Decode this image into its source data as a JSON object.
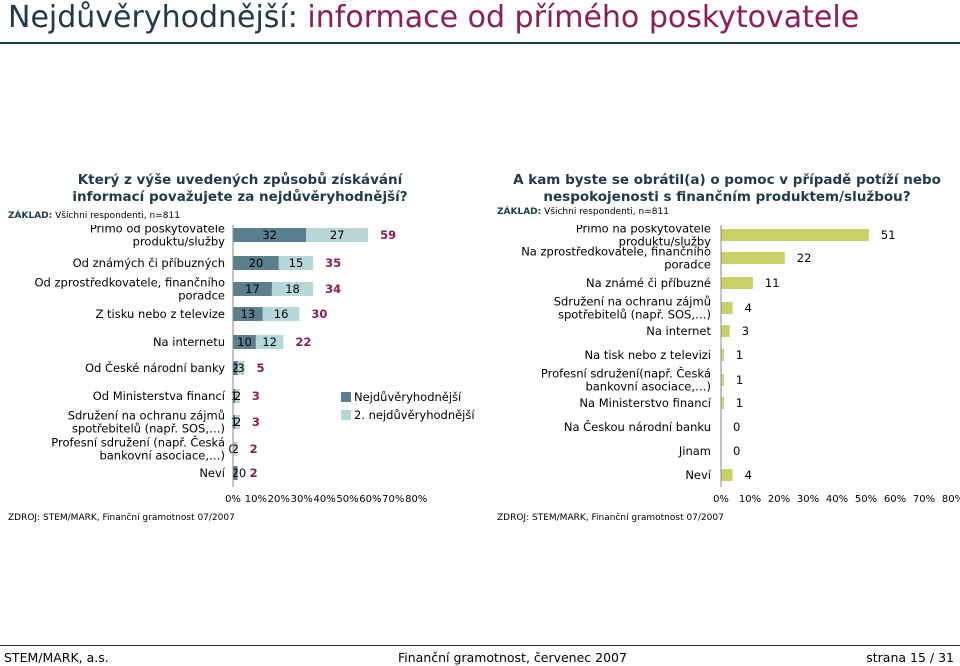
{
  "page": {
    "title_part1": "Nejdůvěryhodnější:",
    "title_part2": " informace od přímého poskytovatele",
    "footer_left": "STEM/MARK, a.s.",
    "footer_center": "Finanční gramotnost, červenec 2007",
    "footer_right": "strana 15 / 31"
  },
  "left": {
    "question": "Který z výše uvedených způsobů získávání informací považujete za nejdůvěryhodnější?",
    "base_label": "ZÁKLAD:",
    "base_text": " Všichni respondenti, n=811",
    "source": "ZDROJ: STEM/MARK, Finanční gramotnost 07/2007"
  },
  "right": {
    "question": "A kam byste se obrátil(a) o pomoc v případě potíží nebo nespokojenosti s finančním produktem/službou?",
    "base_label": "ZÁKLAD:",
    "base_text": " Všichni respondenti, n=811",
    "source": "ZDROJ: STEM/MARK, Finanční gramotnost 07/2007"
  },
  "colors": {
    "series1": "#5b7f8f",
    "series2": "#b6d6d8",
    "total_text": "#8b1e5a",
    "right_bar": "#c8d06a",
    "title_dark": "#1f3a4a",
    "title_accent": "#8b1e5a"
  },
  "chart_data": [
    {
      "type": "bar",
      "orientation": "horizontal",
      "stacked": true,
      "categories": [
        "Přímo od poskytovatele produktu/služby",
        "Od známých či příbuzných",
        "Od zprostředkovatele, finančního poradce",
        "Z tisku nebo z televize",
        "Na internetu",
        "Od České národní banky",
        "Od Ministerstva financí",
        "Sdružení na ochranu zájmů spotřebitelů (např. SOS,…)",
        "Profesní sdružení (např. Česká bankovní asociace,…)",
        "Neví"
      ],
      "series": [
        {
          "name": "Nejdůvěryhodnější",
          "values": [
            32,
            20,
            17,
            13,
            10,
            2,
            1,
            1,
            0,
            2
          ]
        },
        {
          "name": "2. nejdůvěryhodnější",
          "values": [
            27,
            15,
            18,
            16,
            12,
            3,
            2,
            2,
            2,
            0
          ]
        }
      ],
      "totals": [
        59,
        35,
        34,
        30,
        22,
        5,
        3,
        3,
        2,
        2
      ],
      "xlim": [
        0,
        80
      ],
      "xticks": [
        "0%",
        "10%",
        "20%",
        "30%",
        "40%",
        "50%",
        "60%",
        "70%",
        "80%"
      ],
      "legend": "right"
    },
    {
      "type": "bar",
      "orientation": "horizontal",
      "categories": [
        "Přímo na poskytovatele produktu/služby",
        "Na zprostředkovatele, finančního poradce",
        "Na známé či příbuzné",
        "Sdružení na ochranu zájmů spotřebitelů (např. SOS,…)",
        "Na internet",
        "Na tisk nebo z televizi",
        "Profesní sdružení(např. Česká bankovní asociace,…)",
        "Na Ministerstvo financí",
        "Na Českou národní banku",
        "Jinam",
        "Neví"
      ],
      "values": [
        51,
        22,
        11,
        4,
        3,
        1,
        1,
        1,
        0,
        0,
        4
      ],
      "xlim": [
        0,
        80
      ],
      "xticks": [
        "0%",
        "10%",
        "20%",
        "30%",
        "40%",
        "50%",
        "60%",
        "70%",
        "80%"
      ]
    }
  ]
}
